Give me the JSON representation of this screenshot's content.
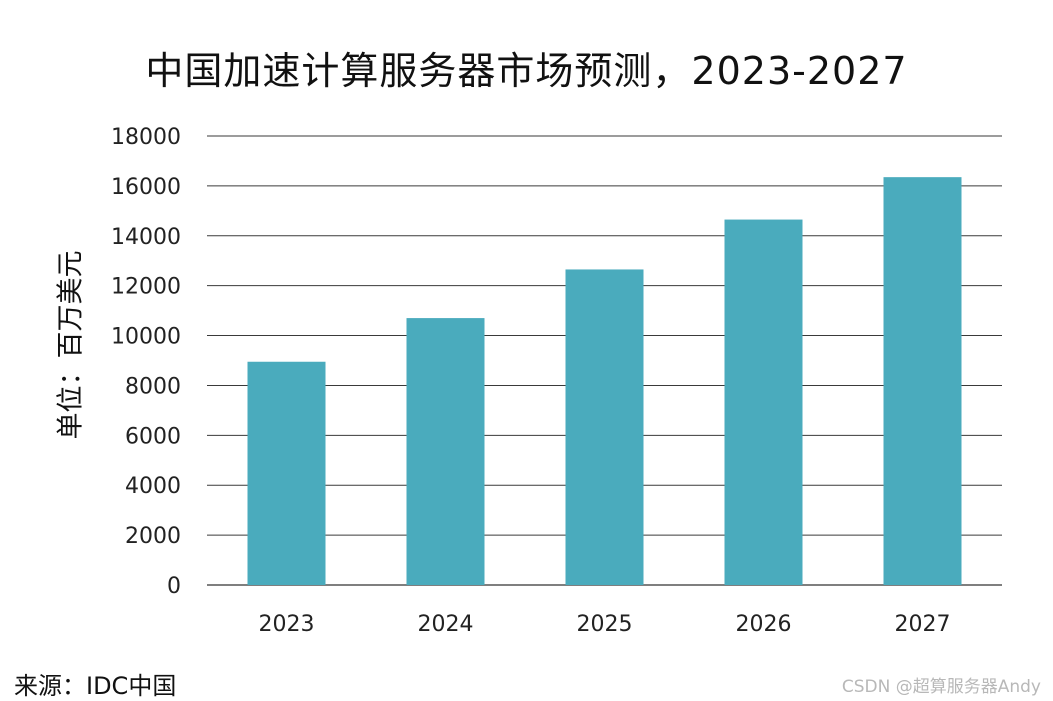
{
  "chart_data": {
    "type": "bar",
    "title": "中国加速计算服务器市场预测，2023-2027",
    "ylabel": "单位：百万美元",
    "xlabel": "",
    "categories": [
      "2023",
      "2024",
      "2025",
      "2026",
      "2027"
    ],
    "values": [
      8950,
      10700,
      12650,
      14650,
      16350
    ],
    "ylim": [
      0,
      18000
    ],
    "yticks": [
      0,
      2000,
      4000,
      6000,
      8000,
      10000,
      12000,
      14000,
      16000,
      18000
    ],
    "grid": true,
    "bar_color": "#4aabbd",
    "source": "来源：IDC中国"
  },
  "watermark": "CSDN @超算服务器Andy"
}
